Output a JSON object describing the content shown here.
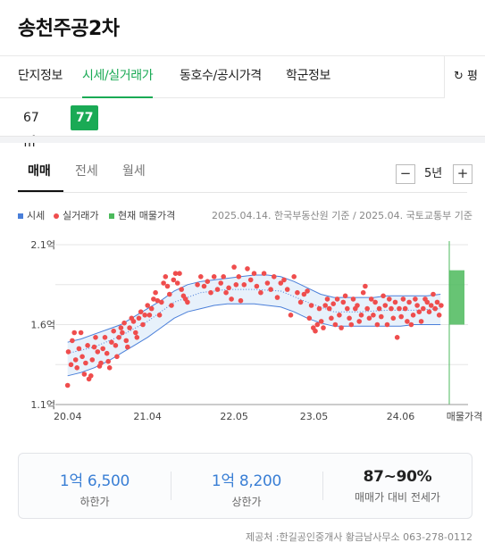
{
  "header": {
    "title": "송천주공2차"
  },
  "tabs": [
    {
      "label": "단지정보",
      "active": false
    },
    {
      "label": "시세/실거래가",
      "active": true
    },
    {
      "label": "동호수/공시가격",
      "active": false
    },
    {
      "label": "학군정보",
      "active": false
    }
  ],
  "tab_more": {
    "label": "평",
    "icon": "refresh-icon",
    "glyph": "↻"
  },
  "areas": [
    {
      "label": "67㎡",
      "active": false
    },
    {
      "label": "77㎡",
      "active": true
    }
  ],
  "deal_tabs": [
    {
      "label": "매매",
      "active": true
    },
    {
      "label": "전세",
      "active": false
    },
    {
      "label": "월세",
      "active": false
    }
  ],
  "period": {
    "minus": "−",
    "plus": "+",
    "label": "5년"
  },
  "legend": {
    "market": "시세",
    "actual": "실거래가",
    "current": "현재 매물가격"
  },
  "source_top": "2025.04.14. 한국부동산원 기준 / 2025.04. 국토교통부 기준",
  "colors": {
    "accent": "#1aaa55",
    "market": "#4a7fd9",
    "actual": "#ef4d4d",
    "current": "#4cba5c",
    "value_blue": "#3a7fd5"
  },
  "chart_data": {
    "type": "scatter",
    "y_ticks": [
      {
        "label": "2.1억",
        "value": 2.1
      },
      {
        "label": "1.6억",
        "value": 1.6
      },
      {
        "label": "1.1억",
        "value": 1.1
      }
    ],
    "x_ticks": [
      "20.04",
      "21.04",
      "22.05",
      "23.05",
      "24.06",
      "매물가격"
    ],
    "x_tick_values": [
      0,
      12,
      25,
      37,
      50
    ],
    "x_range": [
      -0.5,
      60
    ],
    "ylim": [
      1.1,
      2.1
    ],
    "unit": "억",
    "market_band": [
      {
        "x": 0,
        "low": 1.28,
        "high": 1.49
      },
      {
        "x": 2,
        "low": 1.3,
        "high": 1.51
      },
      {
        "x": 4,
        "low": 1.33,
        "high": 1.54
      },
      {
        "x": 6,
        "low": 1.37,
        "high": 1.57
      },
      {
        "x": 8,
        "low": 1.42,
        "high": 1.6
      },
      {
        "x": 10,
        "low": 1.47,
        "high": 1.65
      },
      {
        "x": 12,
        "low": 1.52,
        "high": 1.7
      },
      {
        "x": 14,
        "low": 1.58,
        "high": 1.75
      },
      {
        "x": 16,
        "low": 1.64,
        "high": 1.81
      },
      {
        "x": 18,
        "low": 1.68,
        "high": 1.85
      },
      {
        "x": 20,
        "low": 1.7,
        "high": 1.87
      },
      {
        "x": 22,
        "low": 1.72,
        "high": 1.88
      },
      {
        "x": 24,
        "low": 1.73,
        "high": 1.89
      },
      {
        "x": 26,
        "low": 1.73,
        "high": 1.9
      },
      {
        "x": 28,
        "low": 1.73,
        "high": 1.91
      },
      {
        "x": 30,
        "low": 1.72,
        "high": 1.91
      },
      {
        "x": 32,
        "low": 1.71,
        "high": 1.9
      },
      {
        "x": 34,
        "low": 1.68,
        "high": 1.87
      },
      {
        "x": 36,
        "low": 1.64,
        "high": 1.83
      },
      {
        "x": 38,
        "low": 1.61,
        "high": 1.79
      },
      {
        "x": 40,
        "low": 1.59,
        "high": 1.77
      },
      {
        "x": 42,
        "low": 1.59,
        "high": 1.77
      },
      {
        "x": 44,
        "low": 1.59,
        "high": 1.77
      },
      {
        "x": 46,
        "low": 1.59,
        "high": 1.77
      },
      {
        "x": 48,
        "low": 1.59,
        "high": 1.78
      },
      {
        "x": 50,
        "low": 1.59,
        "high": 1.78
      },
      {
        "x": 52,
        "low": 1.6,
        "high": 1.78
      },
      {
        "x": 54,
        "low": 1.6,
        "high": 1.78
      },
      {
        "x": 56,
        "low": 1.6,
        "high": 1.79
      }
    ],
    "actual_deals": [
      [
        0.0,
        1.22
      ],
      [
        0.1,
        1.43
      ],
      [
        0.5,
        1.35
      ],
      [
        0.7,
        1.5
      ],
      [
        1.0,
        1.55
      ],
      [
        1.2,
        1.38
      ],
      [
        1.4,
        1.33
      ],
      [
        1.7,
        1.45
      ],
      [
        2.0,
        1.55
      ],
      [
        2.2,
        1.4
      ],
      [
        2.5,
        1.29
      ],
      [
        2.7,
        1.36
      ],
      [
        3.0,
        1.47
      ],
      [
        3.2,
        1.26
      ],
      [
        3.5,
        1.28
      ],
      [
        3.7,
        1.38
      ],
      [
        4.0,
        1.46
      ],
      [
        4.2,
        1.52
      ],
      [
        4.5,
        1.43
      ],
      [
        4.8,
        1.34
      ],
      [
        5.0,
        1.36
      ],
      [
        5.3,
        1.45
      ],
      [
        5.6,
        1.52
      ],
      [
        5.9,
        1.42
      ],
      [
        6.1,
        1.37
      ],
      [
        6.3,
        1.33
      ],
      [
        6.6,
        1.49
      ],
      [
        6.9,
        1.56
      ],
      [
        7.2,
        1.47
      ],
      [
        7.4,
        1.4
      ],
      [
        7.7,
        1.52
      ],
      [
        8.0,
        1.58
      ],
      [
        8.2,
        1.55
      ],
      [
        8.5,
        1.61
      ],
      [
        8.8,
        1.5
      ],
      [
        9.0,
        1.46
      ],
      [
        9.3,
        1.58
      ],
      [
        9.6,
        1.64
      ],
      [
        9.9,
        1.62
      ],
      [
        10.2,
        1.55
      ],
      [
        10.4,
        1.52
      ],
      [
        10.7,
        1.64
      ],
      [
        11.0,
        1.68
      ],
      [
        11.3,
        1.6
      ],
      [
        11.6,
        1.66
      ],
      [
        12.0,
        1.72
      ],
      [
        12.3,
        1.66
      ],
      [
        12.6,
        1.7
      ],
      [
        12.9,
        1.76
      ],
      [
        13.2,
        1.8
      ],
      [
        13.5,
        1.75
      ],
      [
        13.8,
        1.66
      ],
      [
        14.1,
        1.74
      ],
      [
        14.4,
        1.86
      ],
      [
        14.7,
        1.9
      ],
      [
        15.0,
        1.84
      ],
      [
        15.3,
        1.79
      ],
      [
        15.6,
        1.72
      ],
      [
        15.9,
        1.88
      ],
      [
        16.2,
        1.92
      ],
      [
        16.5,
        1.86
      ],
      [
        16.8,
        1.92
      ],
      [
        17.1,
        1.82
      ],
      [
        17.4,
        1.78
      ],
      [
        17.7,
        1.76
      ],
      [
        18.0,
        1.74
      ],
      [
        19.5,
        1.85
      ],
      [
        20.0,
        1.9
      ],
      [
        20.5,
        1.84
      ],
      [
        21.0,
        1.87
      ],
      [
        21.5,
        1.8
      ],
      [
        22.0,
        1.9
      ],
      [
        22.5,
        1.82
      ],
      [
        23.0,
        1.86
      ],
      [
        23.4,
        1.9
      ],
      [
        23.8,
        1.8
      ],
      [
        24.2,
        1.83
      ],
      [
        24.6,
        1.76
      ],
      [
        25.0,
        1.96
      ],
      [
        25.3,
        1.85
      ],
      [
        25.7,
        1.9
      ],
      [
        26.0,
        1.75
      ],
      [
        26.5,
        1.85
      ],
      [
        27.0,
        1.95
      ],
      [
        27.5,
        1.88
      ],
      [
        28.0,
        1.92
      ],
      [
        28.4,
        1.84
      ],
      [
        29.0,
        1.8
      ],
      [
        29.5,
        1.92
      ],
      [
        30.0,
        1.86
      ],
      [
        30.5,
        1.82
      ],
      [
        31.0,
        1.9
      ],
      [
        31.5,
        1.77
      ],
      [
        32.0,
        1.86
      ],
      [
        32.5,
        1.88
      ],
      [
        33.0,
        1.82
      ],
      [
        33.5,
        1.66
      ],
      [
        34.0,
        1.9
      ],
      [
        34.5,
        1.8
      ],
      [
        35.0,
        1.74
      ],
      [
        35.5,
        1.79
      ],
      [
        36.0,
        1.81
      ],
      [
        36.3,
        1.64
      ],
      [
        36.6,
        1.72
      ],
      [
        36.9,
        1.58
      ],
      [
        37.2,
        1.56
      ],
      [
        37.5,
        1.6
      ],
      [
        37.8,
        1.7
      ],
      [
        38.1,
        1.62
      ],
      [
        38.4,
        1.58
      ],
      [
        38.7,
        1.72
      ],
      [
        39.0,
        1.76
      ],
      [
        39.3,
        1.7
      ],
      [
        39.6,
        1.64
      ],
      [
        39.9,
        1.73
      ],
      [
        40.2,
        1.6
      ],
      [
        40.5,
        1.76
      ],
      [
        40.8,
        1.66
      ],
      [
        41.1,
        1.58
      ],
      [
        41.4,
        1.74
      ],
      [
        41.7,
        1.78
      ],
      [
        42.0,
        1.7
      ],
      [
        42.3,
        1.64
      ],
      [
        42.6,
        1.6
      ],
      [
        42.9,
        1.76
      ],
      [
        43.2,
        1.7
      ],
      [
        43.5,
        1.72
      ],
      [
        43.8,
        1.62
      ],
      [
        44.1,
        1.66
      ],
      [
        44.4,
        1.8
      ],
      [
        44.7,
        1.84
      ],
      [
        45.0,
        1.7
      ],
      [
        45.3,
        1.64
      ],
      [
        45.6,
        1.76
      ],
      [
        45.9,
        1.66
      ],
      [
        46.2,
        1.74
      ],
      [
        46.5,
        1.6
      ],
      [
        46.8,
        1.7
      ],
      [
        47.1,
        1.65
      ],
      [
        47.4,
        1.78
      ],
      [
        47.7,
        1.72
      ],
      [
        48.0,
        1.6
      ],
      [
        48.3,
        1.76
      ],
      [
        48.6,
        1.7
      ],
      [
        48.9,
        1.64
      ],
      [
        49.2,
        1.74
      ],
      [
        49.5,
        1.52
      ],
      [
        49.8,
        1.7
      ],
      [
        50.1,
        1.65
      ],
      [
        50.4,
        1.76
      ],
      [
        50.7,
        1.7
      ],
      [
        51.0,
        1.62
      ],
      [
        51.3,
        1.74
      ],
      [
        51.6,
        1.6
      ],
      [
        51.9,
        1.66
      ],
      [
        52.2,
        1.76
      ],
      [
        52.5,
        1.72
      ],
      [
        52.8,
        1.68
      ],
      [
        53.1,
        1.62
      ],
      [
        53.4,
        1.7
      ],
      [
        53.7,
        1.76
      ],
      [
        54.0,
        1.74
      ],
      [
        54.3,
        1.68
      ],
      [
        54.6,
        1.72
      ],
      [
        54.9,
        1.79
      ],
      [
        55.2,
        1.7
      ],
      [
        55.5,
        1.74
      ],
      [
        55.8,
        1.66
      ],
      [
        56.1,
        1.72
      ]
    ],
    "current_listing": {
      "low": 1.6,
      "high": 1.94
    },
    "market_line": [
      {
        "x": 0,
        "value": 1.42
      },
      {
        "x": 4,
        "value": 1.46
      },
      {
        "x": 8,
        "value": 1.53
      },
      {
        "x": 12,
        "value": 1.62
      },
      {
        "x": 16,
        "value": 1.74
      },
      {
        "x": 20,
        "value": 1.8
      },
      {
        "x": 24,
        "value": 1.82
      },
      {
        "x": 28,
        "value": 1.82
      },
      {
        "x": 32,
        "value": 1.81
      },
      {
        "x": 36,
        "value": 1.74
      },
      {
        "x": 40,
        "value": 1.68
      },
      {
        "x": 44,
        "value": 1.68
      },
      {
        "x": 48,
        "value": 1.69
      },
      {
        "x": 52,
        "value": 1.69
      },
      {
        "x": 56,
        "value": 1.7
      }
    ]
  },
  "summary": [
    {
      "value": "1억 6,500",
      "label": "하한가",
      "style": "blue"
    },
    {
      "value": "1억 8,200",
      "label": "상한가",
      "style": "blue"
    },
    {
      "value": "87~90%",
      "label": "매매가 대비 전세가",
      "style": "dark"
    }
  ],
  "footer": "제공처 :한길공인중개사 황금남사무소 063-278-0112"
}
